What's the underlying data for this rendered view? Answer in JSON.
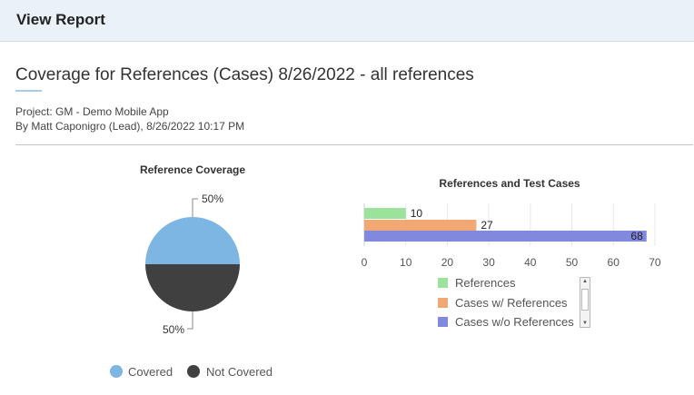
{
  "header": {
    "title": "View Report"
  },
  "report": {
    "title": "Coverage for References (Cases) 8/26/2022 - all references",
    "project": "Project: GM - Demo Mobile App",
    "author": "By Matt Caponigro (Lead), 8/26/2022 10:17 PM"
  },
  "colors": {
    "covered": "#7db5e3",
    "not_covered": "#404040",
    "references": "#9be29a",
    "cases_with_refs": "#f2a874",
    "cases_without_refs": "#8089de"
  },
  "chart_data": [
    {
      "type": "pie",
      "title": "Reference Coverage",
      "slices": [
        {
          "label": "Covered",
          "value": 50,
          "display": "50%"
        },
        {
          "label": "Not Covered",
          "value": 50,
          "display": "50%"
        }
      ],
      "legend_position": "bottom"
    },
    {
      "type": "bar",
      "orientation": "horizontal",
      "title": "References and Test Cases",
      "categories": [
        "References",
        "Cases w/ References",
        "Cases w/o References"
      ],
      "values": [
        10,
        27,
        68
      ],
      "value_labels": [
        "10",
        "27",
        "68"
      ],
      "xlim": [
        0,
        70
      ],
      "x_ticks": [
        "0",
        "10",
        "20",
        "30",
        "40",
        "50",
        "60",
        "70"
      ],
      "grid": true,
      "legend_position": "bottom"
    }
  ]
}
